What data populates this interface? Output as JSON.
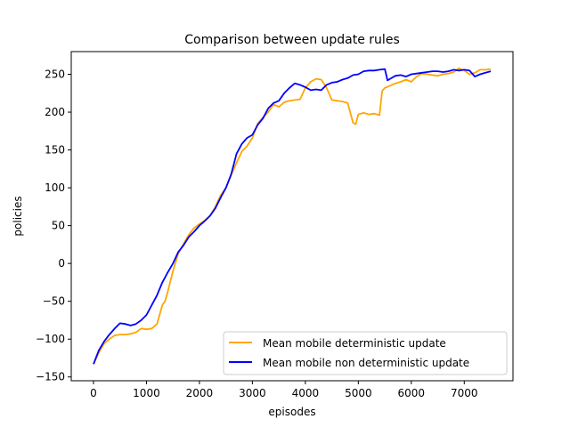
{
  "chart_data": {
    "type": "line",
    "title": "Comparison between update rules",
    "xlabel": "episodes",
    "ylabel": "policies",
    "xlim": [
      -420,
      7920
    ],
    "ylim": [
      -155,
      280
    ],
    "xticks": [
      0,
      1000,
      2000,
      3000,
      4000,
      5000,
      6000,
      7000
    ],
    "yticks": [
      -150,
      -100,
      -50,
      0,
      50,
      100,
      150,
      200,
      250
    ],
    "grid": false,
    "legend_position": "lower-right",
    "series": [
      {
        "name": "Mean mobile deterministic update",
        "color": "#ffa500",
        "x": [
          0,
          100,
          200,
          300,
          400,
          500,
          600,
          700,
          800,
          900,
          1000,
          1100,
          1200,
          1300,
          1350,
          1400,
          1500,
          1600,
          1700,
          1800,
          1900,
          2000,
          2100,
          2200,
          2300,
          2400,
          2500,
          2600,
          2700,
          2800,
          2900,
          3000,
          3100,
          3200,
          3300,
          3400,
          3500,
          3600,
          3700,
          3800,
          3900,
          4000,
          4100,
          4200,
          4300,
          4400,
          4500,
          4600,
          4700,
          4800,
          4900,
          4950,
          5000,
          5100,
          5200,
          5300,
          5400,
          5450,
          5500,
          5600,
          5700,
          5800,
          5900,
          6000,
          6100,
          6200,
          6300,
          6400,
          6500,
          6600,
          6700,
          6800,
          6900,
          7000,
          7100,
          7200,
          7300,
          7400,
          7500
        ],
        "values": [
          -133,
          -118,
          -106,
          -100,
          -95,
          -94,
          -94,
          -93,
          -91,
          -86,
          -87,
          -86,
          -80,
          -55,
          -50,
          -38,
          -10,
          13,
          26,
          38,
          47,
          52,
          57,
          63,
          75,
          90,
          100,
          117,
          133,
          148,
          155,
          166,
          185,
          193,
          200,
          210,
          207,
          213,
          215,
          216,
          217,
          232,
          240,
          244,
          243,
          232,
          216,
          215,
          214,
          212,
          186,
          184,
          197,
          199,
          197,
          198,
          196,
          228,
          232,
          235,
          238,
          240,
          243,
          240,
          247,
          251,
          250,
          249,
          248,
          250,
          251,
          253,
          258,
          255,
          250,
          252,
          256,
          256,
          257
        ]
      },
      {
        "name": "Mean mobile non deterministic update",
        "color": "#0000ff",
        "x": [
          0,
          100,
          200,
          300,
          400,
          500,
          600,
          700,
          800,
          900,
          1000,
          1100,
          1200,
          1300,
          1400,
          1500,
          1600,
          1700,
          1800,
          1900,
          2000,
          2100,
          2200,
          2300,
          2400,
          2500,
          2600,
          2700,
          2800,
          2900,
          3000,
          3100,
          3200,
          3300,
          3400,
          3500,
          3600,
          3700,
          3800,
          3900,
          4000,
          4100,
          4200,
          4300,
          4400,
          4500,
          4600,
          4700,
          4800,
          4900,
          5000,
          5100,
          5200,
          5300,
          5400,
          5500,
          5550,
          5600,
          5700,
          5800,
          5900,
          6000,
          6100,
          6200,
          6300,
          6400,
          6500,
          6600,
          6700,
          6800,
          6900,
          7000,
          7100,
          7200,
          7300,
          7400,
          7500
        ],
        "values": [
          -133,
          -115,
          -103,
          -94,
          -86,
          -79,
          -80,
          -82,
          -80,
          -75,
          -68,
          -55,
          -42,
          -25,
          -12,
          0,
          15,
          24,
          35,
          42,
          50,
          56,
          63,
          73,
          87,
          100,
          118,
          145,
          158,
          166,
          170,
          183,
          192,
          205,
          212,
          215,
          225,
          232,
          238,
          236,
          233,
          229,
          230,
          229,
          236,
          239,
          240,
          243,
          245,
          249,
          250,
          254,
          255,
          255,
          256,
          257,
          242,
          244,
          248,
          249,
          247,
          250,
          251,
          252,
          253,
          254,
          254,
          253,
          254,
          256,
          255,
          256,
          255,
          247,
          250,
          252,
          254
        ]
      }
    ]
  }
}
